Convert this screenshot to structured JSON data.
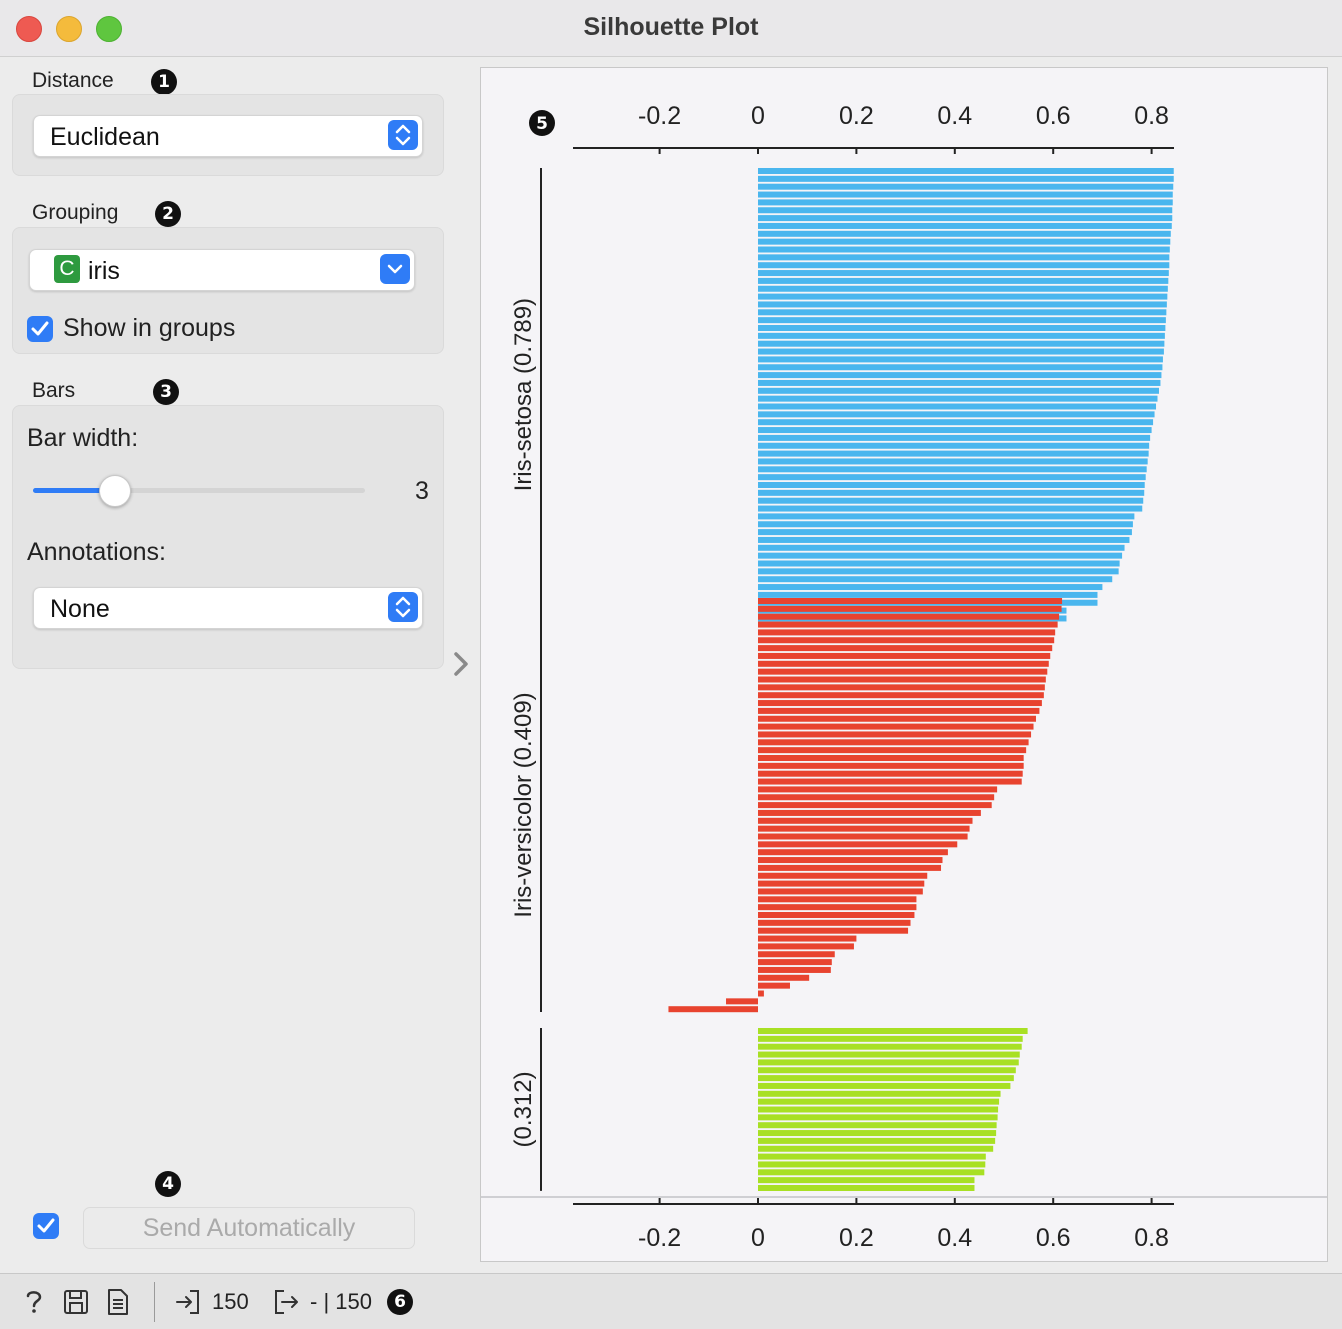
{
  "window": {
    "title": "Silhouette Plot"
  },
  "distance": {
    "section_label": "Distance",
    "badge": "1",
    "selected": "Euclidean"
  },
  "grouping": {
    "section_label": "Grouping",
    "badge": "2",
    "variable_type": "C",
    "selected": "iris",
    "show_in_groups_label": "Show in groups",
    "show_in_groups_checked": true
  },
  "bars": {
    "section_label": "Bars",
    "badge": "3",
    "bar_width_label": "Bar width:",
    "bar_width_value": "3",
    "annotations_label": "Annotations:",
    "annotations_selected": "None"
  },
  "send": {
    "badge": "4",
    "auto_checked": true,
    "button_label": "Send Automatically"
  },
  "plot": {
    "badge": "5"
  },
  "statusbar": {
    "input_count": "150",
    "output_text": "- | 150",
    "badge": "6"
  },
  "colors": {
    "accent": "#2f7cf6",
    "setosa": "#4ab6ee",
    "versicolor": "#e8432f",
    "virginica": "#a8e024"
  },
  "chart_data": {
    "type": "bar",
    "orientation": "horizontal",
    "x_ticks": [
      "-0.2",
      "0",
      "0.2",
      "0.4",
      "0.6",
      "0.8"
    ],
    "xlim": [
      -0.35,
      0.85
    ],
    "groups": [
      {
        "label": "Iris-setosa (0.789)",
        "color": "#4ab6ee",
        "values": [
          0.845,
          0.845,
          0.844,
          0.843,
          0.843,
          0.842,
          0.842,
          0.841,
          0.839,
          0.838,
          0.837,
          0.836,
          0.836,
          0.835,
          0.834,
          0.833,
          0.832,
          0.831,
          0.83,
          0.829,
          0.828,
          0.827,
          0.826,
          0.825,
          0.823,
          0.822,
          0.82,
          0.818,
          0.815,
          0.812,
          0.809,
          0.806,
          0.803,
          0.8,
          0.797,
          0.795,
          0.794,
          0.792,
          0.79,
          0.788,
          0.786,
          0.785,
          0.783,
          0.781,
          0.765,
          0.762,
          0.76,
          0.755,
          0.745,
          0.74,
          0.735,
          0.733,
          0.72,
          0.7,
          0.69,
          0.69,
          0.627,
          0.627
        ]
      },
      {
        "label": "Iris-versicolor (0.409)",
        "color": "#e8432f",
        "values": [
          0.618,
          0.617,
          0.612,
          0.609,
          0.604,
          0.602,
          0.598,
          0.594,
          0.591,
          0.588,
          0.585,
          0.583,
          0.581,
          0.577,
          0.572,
          0.565,
          0.56,
          0.555,
          0.55,
          0.545,
          0.54,
          0.54,
          0.538,
          0.536,
          0.486,
          0.48,
          0.475,
          0.453,
          0.436,
          0.43,
          0.426,
          0.405,
          0.386,
          0.375,
          0.372,
          0.344,
          0.338,
          0.335,
          0.322,
          0.322,
          0.318,
          0.31,
          0.305,
          0.2,
          0.195,
          0.156,
          0.15,
          0.148,
          0.104,
          0.065,
          0.012,
          -0.065,
          -0.182
        ]
      },
      {
        "label": "(0.312)",
        "color": "#a8e024",
        "values": [
          0.548,
          0.538,
          0.536,
          0.532,
          0.53,
          0.524,
          0.52,
          0.513,
          0.493,
          0.49,
          0.488,
          0.487,
          0.485,
          0.484,
          0.482,
          0.478,
          0.463,
          0.462,
          0.46,
          0.44,
          0.44
        ]
      }
    ]
  }
}
